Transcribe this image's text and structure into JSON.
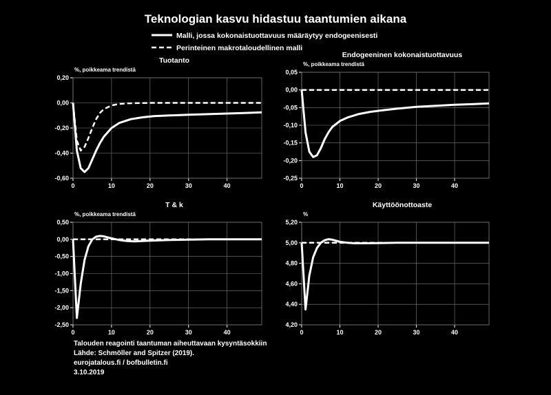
{
  "title": "Teknologian kasvu hidastuu taantumien aikana",
  "legend": [
    {
      "label": "Malli, jossa kokonaistuottavuus määräytyy endogeenisesti",
      "style": "solid"
    },
    {
      "label": "Perinteinen makrotaloudellinen malli",
      "style": "dashed"
    }
  ],
  "footer": [
    "Talouden reagointi taantuman aiheuttavaan kysyntäsokkiin",
    "Lähde: Schmöller and Spitzer (2019).",
    "eurojatalous.fi / bofbulletin.fi",
    "3.10.2019"
  ],
  "colors": {
    "background": "#000000",
    "line": "#ffffff",
    "grid": "#7f7f7f"
  },
  "chart_data": [
    {
      "type": "line",
      "title": "Tuotanto",
      "unit": "%, poikkeama trendistä",
      "xlim": [
        0,
        49
      ],
      "xticks": [
        0,
        10,
        20,
        30,
        40
      ],
      "xtick_labels": [
        "0",
        "10",
        "20",
        "30",
        "40"
      ],
      "ylim": [
        -0.6,
        0.2
      ],
      "yticks": [
        0.2,
        0.0,
        -0.2,
        -0.4,
        -0.6
      ],
      "ytick_labels": [
        "0,20",
        "0,00",
        "-0,20",
        "-0,40",
        "-0,60"
      ],
      "grid": true,
      "series": [
        {
          "style": "solid",
          "x": [
            0,
            1,
            2,
            3,
            4,
            5,
            6,
            7,
            8,
            10,
            12,
            15,
            18,
            21,
            25,
            30,
            35,
            40,
            45,
            49
          ],
          "y": [
            0.0,
            -0.38,
            -0.52,
            -0.55,
            -0.52,
            -0.45,
            -0.38,
            -0.32,
            -0.27,
            -0.2,
            -0.16,
            -0.13,
            -0.115,
            -0.105,
            -0.1,
            -0.095,
            -0.09,
            -0.085,
            -0.08,
            -0.075
          ]
        },
        {
          "style": "dashed",
          "x": [
            0,
            1,
            2,
            3,
            4,
            5,
            6,
            7,
            8,
            10,
            12,
            14,
            16,
            20,
            25,
            30,
            35,
            40,
            45,
            49
          ],
          "y": [
            0.0,
            -0.3,
            -0.38,
            -0.35,
            -0.28,
            -0.2,
            -0.13,
            -0.08,
            -0.05,
            -0.02,
            -0.008,
            -0.004,
            -0.002,
            0.0,
            0.0,
            0.0,
            0.0,
            0.0,
            0.0,
            0.0
          ]
        }
      ]
    },
    {
      "type": "line",
      "title": "Endogeeninen kokonaistuottavuus",
      "unit": "%, poikkeama trendistä",
      "xlim": [
        0,
        49
      ],
      "xticks": [
        0,
        10,
        20,
        30,
        40
      ],
      "xtick_labels": [
        "0",
        "10",
        "20",
        "30",
        "40"
      ],
      "ylim": [
        -0.25,
        0.05
      ],
      "yticks": [
        0.05,
        0.0,
        -0.05,
        -0.1,
        -0.15,
        -0.2,
        -0.25
      ],
      "ytick_labels": [
        "0,05",
        "0,00",
        "-0,05",
        "-0,10",
        "-0,15",
        "-0,20",
        "-0,25"
      ],
      "grid": true,
      "series": [
        {
          "style": "solid",
          "x": [
            0,
            1,
            2,
            3,
            4,
            5,
            6,
            7,
            8,
            10,
            12,
            15,
            18,
            21,
            25,
            30,
            35,
            40,
            45,
            49
          ],
          "y": [
            0.0,
            -0.12,
            -0.175,
            -0.19,
            -0.185,
            -0.165,
            -0.14,
            -0.12,
            -0.105,
            -0.088,
            -0.078,
            -0.068,
            -0.062,
            -0.058,
            -0.053,
            -0.048,
            -0.045,
            -0.042,
            -0.04,
            -0.038
          ]
        },
        {
          "style": "dashed",
          "x": [
            0,
            49
          ],
          "y": [
            0.0,
            0.0
          ]
        }
      ]
    },
    {
      "type": "line",
      "title": "T & k",
      "unit": "%, poikkeama trendistä",
      "xlim": [
        0,
        49
      ],
      "xticks": [
        0,
        10,
        20,
        30,
        40
      ],
      "xtick_labels": [
        "0",
        "10",
        "20",
        "30",
        "40"
      ],
      "ylim": [
        -2.5,
        0.5
      ],
      "yticks": [
        0.5,
        0.0,
        -0.5,
        -1.0,
        -1.5,
        -2.0,
        -2.5
      ],
      "ytick_labels": [
        "0,50",
        "0,00",
        "-0,50",
        "-1,00",
        "-1,50",
        "-2,00",
        "-2,50"
      ],
      "grid": true,
      "series": [
        {
          "style": "solid",
          "x": [
            0,
            1,
            2,
            3,
            4,
            5,
            6,
            7,
            8,
            9,
            10,
            12,
            14,
            16,
            18,
            20,
            25,
            30,
            35,
            40,
            45,
            49
          ],
          "y": [
            0.0,
            -2.3,
            -1.3,
            -0.6,
            -0.2,
            0.0,
            0.08,
            0.1,
            0.09,
            0.06,
            0.03,
            -0.02,
            -0.05,
            -0.06,
            -0.05,
            -0.04,
            -0.02,
            -0.01,
            0.0,
            0.0,
            0.0,
            0.0
          ]
        },
        {
          "style": "dashed",
          "x": [
            0,
            49
          ],
          "y": [
            0.0,
            0.0
          ]
        }
      ]
    },
    {
      "type": "line",
      "title": "Käyttöönottoaste",
      "unit": "%",
      "xlim": [
        0,
        49
      ],
      "xticks": [
        0,
        10,
        20,
        30,
        40
      ],
      "xtick_labels": [
        "0",
        "10",
        "20",
        "30",
        "40"
      ],
      "ylim": [
        4.2,
        5.2
      ],
      "yticks": [
        5.2,
        5.0,
        4.8,
        4.6,
        4.4,
        4.2
      ],
      "ytick_labels": [
        "5,20",
        "5,00",
        "4,80",
        "4,60",
        "4,40",
        "4,20"
      ],
      "grid": true,
      "series": [
        {
          "style": "solid",
          "x": [
            0,
            1,
            2,
            3,
            4,
            5,
            6,
            7,
            8,
            9,
            10,
            12,
            14,
            16,
            20,
            25,
            30,
            35,
            40,
            45,
            49
          ],
          "y": [
            5.0,
            4.35,
            4.68,
            4.86,
            4.95,
            5.0,
            5.025,
            5.035,
            5.03,
            5.02,
            5.01,
            5.0,
            4.995,
            4.995,
            4.997,
            5.0,
            5.0,
            5.0,
            5.0,
            5.0,
            5.0
          ]
        },
        {
          "style": "dashed",
          "x": [
            0,
            49
          ],
          "y": [
            5.0,
            5.0
          ]
        }
      ]
    }
  ]
}
